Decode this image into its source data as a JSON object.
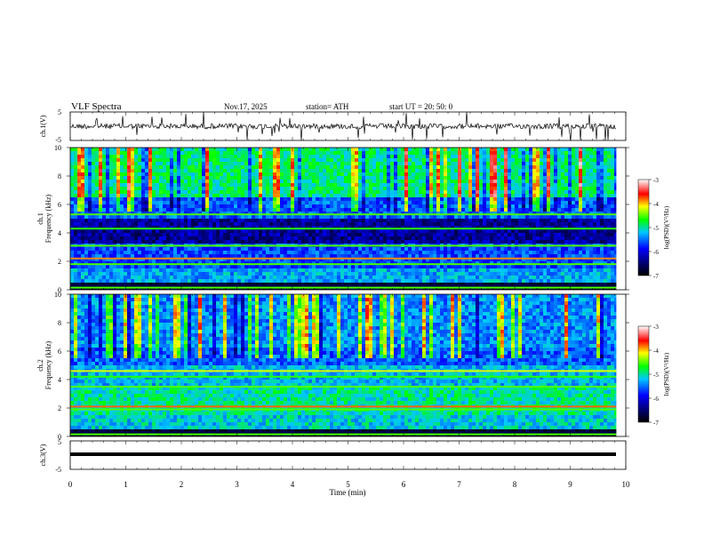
{
  "header": {
    "title": "VLF  Spectra",
    "date": "Nov.17, 2025",
    "station": "station= ATH",
    "start_ut": "start  UT  =    20: 50: 0"
  },
  "chart_data": [
    {
      "type": "line",
      "id": "ch1-waveform",
      "ylabel": "ch.1(V)",
      "ylim": [
        -5,
        5
      ],
      "yticks": [
        "5",
        "-5"
      ],
      "xlim": [
        0,
        10
      ],
      "data_extent_min": 9.83
    },
    {
      "type": "heatmap",
      "id": "ch1-spectrogram",
      "ylabel_line1": "ch.1",
      "ylabel_line2": "Frequency  (kHz)",
      "ylim": [
        0,
        10
      ],
      "yticks": [
        "0",
        "2",
        "4",
        "6",
        "8",
        "10"
      ],
      "colorbar": {
        "label": "log(PSD)(V²/Hz)",
        "range": [
          -7,
          -3
        ],
        "ticks": [
          "-3",
          "-4",
          "-5",
          "-6",
          "-7"
        ]
      }
    },
    {
      "type": "heatmap",
      "id": "ch2-spectrogram",
      "ylabel_line1": "ch.2",
      "ylabel_line2": "Frequency  (kHz)",
      "ylim": [
        0,
        10
      ],
      "yticks": [
        "0",
        "2",
        "4",
        "6",
        "8",
        "10"
      ],
      "colorbar": {
        "label": "log(PSD)(V²/Hz)",
        "range": [
          -7,
          -3
        ],
        "ticks": [
          "-3",
          "-4",
          "-5",
          "-6",
          "-7"
        ]
      }
    },
    {
      "type": "line",
      "id": "ch3-waveform",
      "ylabel": "ch.3(V)",
      "ylim": [
        -5,
        5
      ],
      "yticks": [
        "5",
        "-5"
      ],
      "level": 0
    }
  ],
  "xaxis": {
    "label": "Time  (min)",
    "ticks": [
      "0",
      "1",
      "2",
      "3",
      "4",
      "5",
      "6",
      "7",
      "8",
      "9",
      "10"
    ]
  },
  "colors": {
    "colormap": [
      "#000000",
      "#00005a",
      "#0000ff",
      "#00c8ff",
      "#00ff00",
      "#ffff00",
      "#ff0000",
      "#ffffff"
    ]
  }
}
